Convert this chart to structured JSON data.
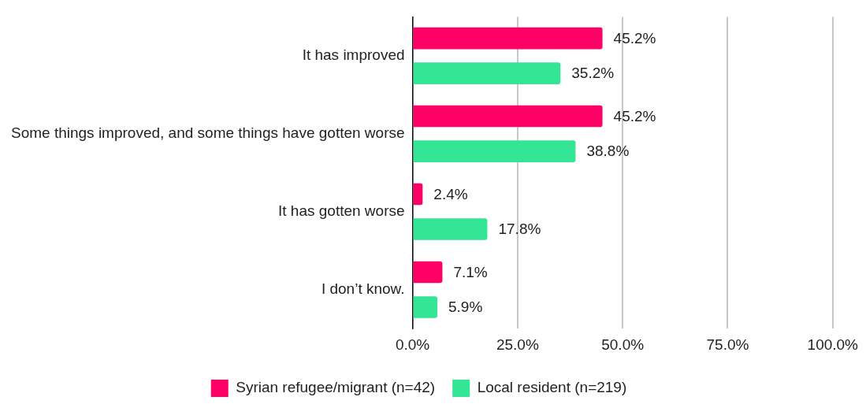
{
  "chart_data": {
    "type": "bar",
    "orientation": "horizontal",
    "categories": [
      "It has improved",
      "Some things improved, and some things have gotten worse",
      "It has gotten worse",
      "I don’t know."
    ],
    "series": [
      {
        "name": "Syrian refugee/migrant (n=42)",
        "color": "#ff0066",
        "values": [
          45.2,
          45.2,
          2.4,
          7.1
        ],
        "value_labels": [
          "45.2%",
          "45.2%",
          "2.4%",
          "7.1%"
        ]
      },
      {
        "name": "Local resident (n=219)",
        "color": "#33e595",
        "values": [
          35.2,
          38.8,
          17.8,
          5.9
        ],
        "value_labels": [
          "35.2%",
          "38.8%",
          "17.8%",
          "5.9%"
        ]
      }
    ],
    "xlim": [
      0,
      100
    ],
    "xticks": [
      {
        "value": 0,
        "label": "0.0%"
      },
      {
        "value": 25,
        "label": "25.0%"
      },
      {
        "value": 50,
        "label": "50.0%"
      },
      {
        "value": 75,
        "label": "75.0%"
      },
      {
        "value": 100,
        "label": "100.0%"
      }
    ],
    "grid": "x",
    "legend": "bottom"
  }
}
